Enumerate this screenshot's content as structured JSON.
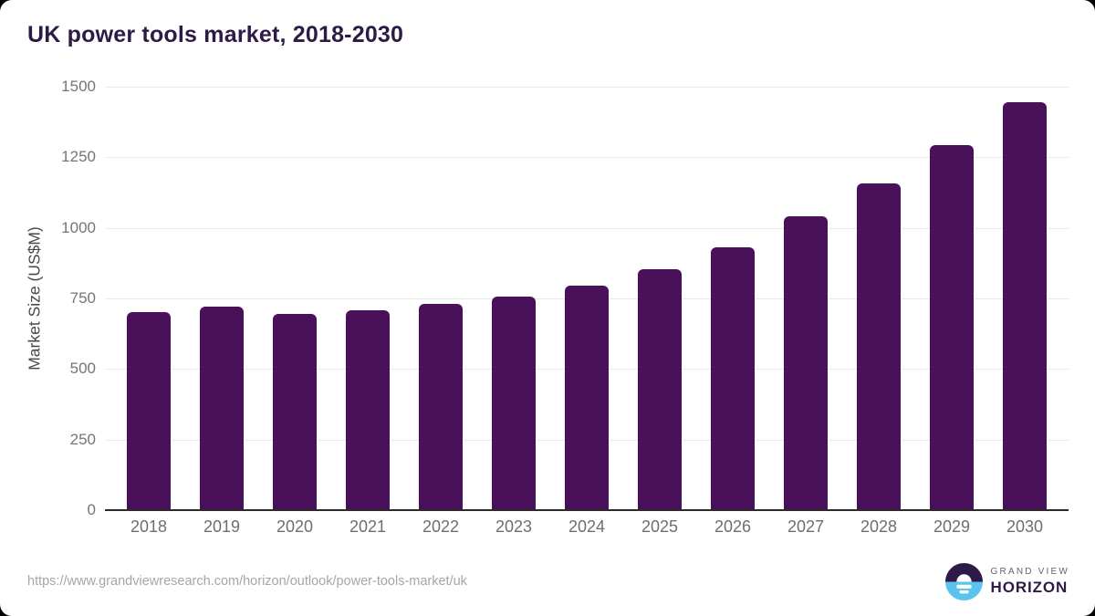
{
  "page": {
    "title": "UK power tools market, 2018-2030"
  },
  "chart_data": {
    "type": "bar",
    "title": "UK power tools market, 2018-2030",
    "categories": [
      "2018",
      "2019",
      "2020",
      "2021",
      "2022",
      "2023",
      "2024",
      "2025",
      "2026",
      "2027",
      "2028",
      "2029",
      "2030"
    ],
    "values": [
      700,
      722,
      696,
      708,
      730,
      758,
      794,
      855,
      930,
      1040,
      1158,
      1294,
      1445
    ],
    "xlabel": "",
    "ylabel": "Market Size (US$M)",
    "ylim": [
      0,
      1500
    ],
    "ytick_interval": 250,
    "yticks": [
      0,
      250,
      500,
      750,
      1000,
      1250,
      1500
    ],
    "grid": "horizontal",
    "legend": "none"
  },
  "footer": {
    "source_url": "https://www.grandviewresearch.com/horizon/outlook/power-tools-market/uk",
    "logo_line1": "GRAND VIEW",
    "logo_line2": "HORIZON"
  },
  "colors": {
    "bar": "#4a115a",
    "title_text": "#2e1a47",
    "axis_line": "#2b2b2b",
    "gridline": "#e9e9e9",
    "y_tick_label": "#757575",
    "x_tick_label": "#6e6e6e",
    "source_text": "#a6a6a6",
    "logo_purple": "#2e1a47",
    "logo_blue": "#5cc3ef"
  }
}
